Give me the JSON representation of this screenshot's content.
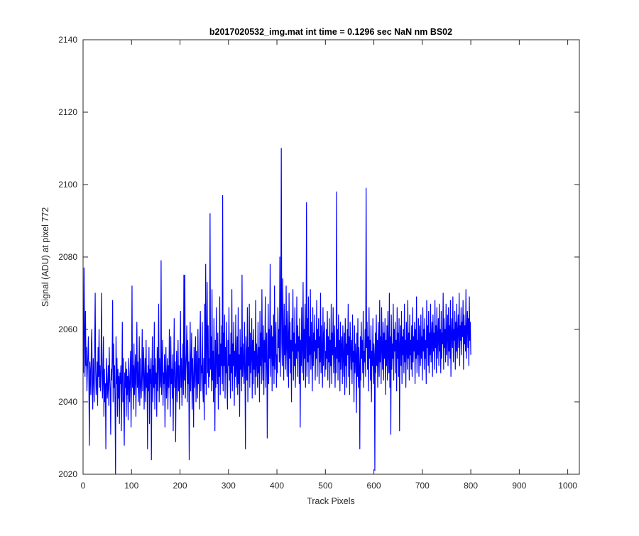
{
  "chart_data": {
    "type": "line",
    "title": "b2017020532_img.mat int time = 0.1296 sec  NaN nm BS02",
    "xlabel": "Track Pixels",
    "ylabel": "Signal (ADU) at pixel 772",
    "xlim": [
      0,
      1024
    ],
    "ylim": [
      2020,
      2140
    ],
    "xticks": [
      0,
      100,
      200,
      300,
      400,
      500,
      600,
      700,
      800,
      900,
      1000
    ],
    "yticks": [
      2020,
      2040,
      2060,
      2080,
      2100,
      2120,
      2140
    ],
    "grid": false,
    "line_color": "#0000ff",
    "series": [
      {
        "x_start": 1,
        "x_step": 1,
        "values": [
          2048,
          2077,
          2060,
          2047,
          2065,
          2050,
          2055,
          2043,
          2049,
          2053,
          2058,
          2045,
          2028,
          2051,
          2048,
          2042,
          2055,
          2060,
          2044,
          2038,
          2052,
          2047,
          2040,
          2056,
          2070,
          2049,
          2042,
          2045,
          2051,
          2039,
          2055,
          2047,
          2060,
          2044,
          2050,
          2043,
          2048,
          2070,
          2053,
          2041,
          2046,
          2058,
          2036,
          2049,
          2040,
          2045,
          2027,
          2052,
          2048,
          2041,
          2044,
          2050,
          2039,
          2055,
          2047,
          2043,
          2031,
          2049,
          2046,
          2052,
          2068,
          2040,
          2056,
          2044,
          2050,
          2039,
          2020,
          2058,
          2045,
          2052,
          2036,
          2049,
          2041,
          2047,
          2034,
          2048,
          2045,
          2050,
          2032,
          2046,
          2062,
          2040,
          2052,
          2038,
          2028,
          2048,
          2044,
          2051,
          2036,
          2049,
          2042,
          2047,
          2035,
          2052,
          2045,
          2040,
          2048,
          2054,
          2033,
          2046,
          2072,
          2044,
          2050,
          2038,
          2056,
          2042,
          2047,
          2053,
          2036,
          2049,
          2062,
          2044,
          2051,
          2040,
          2046,
          2058,
          2039,
          2052,
          2045,
          2041,
          2047,
          2060,
          2043,
          2050,
          2055,
          2038,
          2046,
          2052,
          2040,
          2057,
          2044,
          2048,
          2027,
          2050,
          2043,
          2055,
          2034,
          2049,
          2045,
          2052,
          2024,
          2047,
          2058,
          2040,
          2050,
          2044,
          2062,
          2038,
          2052,
          2045,
          2048,
          2036,
          2055,
          2043,
          2050,
          2067,
          2040,
          2052,
          2046,
          2044,
          2079,
          2042,
          2050,
          2057,
          2039,
          2048,
          2045,
          2053,
          2033,
          2049,
          2055,
          2041,
          2046,
          2052,
          2038,
          2050,
          2044,
          2060,
          2047,
          2036,
          2058,
          2045,
          2049,
          2041,
          2053,
          2032,
          2048,
          2063,
          2044,
          2051,
          2029,
          2046,
          2054,
          2040,
          2048,
          2057,
          2043,
          2050,
          2038,
          2047,
          2065,
          2044,
          2052,
          2039,
          2048,
          2056,
          2042,
          2075,
          2046,
          2075,
          2041,
          2049,
          2053,
          2061,
          2040,
          2057,
          2045,
          2051,
          2024,
          2048,
          2062,
          2043,
          2050,
          2059,
          2038,
          2052,
          2046,
          2033,
          2055,
          2044,
          2049,
          2058,
          2040,
          2054,
          2047,
          2041,
          2060,
          2045,
          2052,
          2038,
          2057,
          2065,
          2043,
          2050,
          2048,
          2062,
          2044,
          2040,
          2052,
          2035,
          2067,
          2045,
          2078,
          2042,
          2056,
          2073,
          2048,
          2061,
          2044,
          2052,
          2047,
          2092,
          2049,
          2058,
          2043,
          2071,
          2046,
          2054,
          2040,
          2063,
          2049,
          2032,
          2057,
          2044,
          2066,
          2051,
          2045,
          2059,
          2038,
          2053,
          2047,
          2069,
          2042,
          2056,
          2050,
          2061,
          2045,
          2097,
          2043,
          2059,
          2050,
          2064,
          2041,
          2055,
          2048,
          2062,
          2044,
          2038,
          2057,
          2050,
          2066,
          2046,
          2053,
          2041,
          2059,
          2048,
          2071,
          2043,
          2056,
          2050,
          2062,
          2039,
          2054,
          2047,
          2064,
          2044,
          2051,
          2058,
          2042,
          2066,
          2045,
          2053,
          2036,
          2060,
          2049,
          2055,
          2043,
          2075,
          2047,
          2056,
          2051,
          2045,
          2062,
          2049,
          2027,
          2058,
          2052,
          2046,
          2066,
          2040,
          2055,
          2050,
          2067,
          2044,
          2059,
          2048,
          2053,
          2063,
          2041,
          2057,
          2045,
          2060,
          2049,
          2054,
          2042,
          2068,
          2047,
          2056,
          2051,
          2044,
          2062,
          2048,
          2055,
          2040,
          2065,
          2050,
          2059,
          2045,
          2071,
          2053,
          2046,
          2061,
          2042,
          2057,
          2051,
          2069,
          2044,
          2055,
          2059,
          2030,
          2048,
          2067,
          2045,
          2060,
          2052,
          2078,
          2047,
          2055,
          2061,
          2043,
          2058,
          2050,
          2064,
          2045,
          2072,
          2049,
          2056,
          2062,
          2044,
          2053,
          2048,
          2066,
          2055,
          2060,
          2051,
          2080,
          2047,
          2063,
          2110,
          2056,
          2050,
          2074,
          2058,
          2046,
          2067,
          2053,
          2061,
          2049,
          2072,
          2055,
          2047,
          2065,
          2058,
          2044,
          2070,
          2052,
          2062,
          2048,
          2057,
          2040,
          2063,
          2054,
          2071,
          2046,
          2059,
          2050,
          2066,
          2044,
          2056,
          2052,
          2069,
          2047,
          2061,
          2054,
          2058,
          2045,
          2063,
          2033,
          2057,
          2050,
          2066,
          2048,
          2055,
          2073,
          2046,
          2060,
          2052,
          2067,
          2044,
          2056,
          2095,
          2047,
          2063,
          2051,
          2069,
          2045,
          2058,
          2053,
          2071,
          2049,
          2062,
          2055,
          2043,
          2066,
          2050,
          2059,
          2054,
          2064,
          2046,
          2057,
          2052,
          2068,
          2047,
          2060,
          2055,
          2063,
          2045,
          2058,
          2051,
          2070,
          2048,
          2061,
          2054,
          2044,
          2066,
          2050,
          2058,
          2062,
          2047,
          2054,
          2049,
          2060,
          2052,
          2065,
          2046,
          2058,
          2051,
          2063,
          2044,
          2057,
          2050,
          2067,
          2045,
          2059,
          2053,
          2066,
          2048,
          2056,
          2061,
          2044,
          2055,
          2048,
          2098,
          2052,
          2060,
          2046,
          2064,
          2051,
          2057,
          2043,
          2062,
          2049,
          2055,
          2058,
          2045,
          2061,
          2052,
          2047,
          2059,
          2042,
          2063,
          2050,
          2056,
          2044,
          2060,
          2053,
          2067,
          2047,
          2058,
          2042,
          2062,
          2055,
          2049,
          2057,
          2045,
          2064,
          2051,
          2054,
          2040,
          2061,
          2048,
          2056,
          2053,
          2037,
          2059,
          2047,
          2063,
          2044,
          2055,
          2050,
          2027,
          2058,
          2046,
          2062,
          2052,
          2057,
          2048,
          2065,
          2044,
          2054,
          2051,
          2060,
          2047,
          2099,
          2055,
          2062,
          2049,
          2058,
          2043,
          2066,
          2052,
          2057,
          2046,
          2061,
          2040,
          2054,
          2050,
          2063,
          2045,
          2056,
          2053,
          2021,
          2059,
          2048,
          2064,
          2050,
          2057,
          2044,
          2062,
          2053,
          2047,
          2068,
          2051,
          2058,
          2045,
          2066,
          2055,
          2049,
          2062,
          2046,
          2059,
          2052,
          2063,
          2042,
          2057,
          2050,
          2061,
          2046,
          2065,
          2053,
          2048,
          2070,
          2044,
          2058,
          2031,
          2064,
          2049,
          2056,
          2052,
          2067,
          2046,
          2060,
          2054,
          2062,
          2048,
          2057,
          2043,
          2066,
          2052,
          2059,
          2047,
          2063,
          2032,
          2056,
          2061,
          2050,
          2065,
          2045,
          2058,
          2053,
          2060,
          2048,
          2067,
          2051,
          2057,
          2044,
          2062,
          2055,
          2049,
          2068,
          2052,
          2059,
          2046,
          2064,
          2053,
          2057,
          2049,
          2061,
          2047,
          2066,
          2051,
          2058,
          2054,
          2062,
          2045,
          2060,
          2052,
          2069,
          2048,
          2057,
          2053,
          2063,
          2047,
          2061,
          2055,
          2050,
          2064,
          2052,
          2058,
          2046,
          2066,
          2054,
          2060,
          2049,
          2063,
          2052,
          2057,
          2045,
          2068,
          2055,
          2061,
          2050,
          2065,
          2048,
          2059,
          2053,
          2067,
          2051,
          2058,
          2062,
          2047,
          2064,
          2054,
          2059,
          2049,
          2068,
          2055,
          2061,
          2048,
          2066,
          2052,
          2058,
          2063,
          2050,
          2067,
          2054,
          2060,
          2048,
          2065,
          2052,
          2059,
          2056,
          2070,
          2049,
          2063,
          2055,
          2060,
          2051,
          2067,
          2053,
          2058,
          2064,
          2050,
          2066,
          2054,
          2061,
          2052,
          2068,
          2047,
          2059,
          2063,
          2055,
          2069,
          2051,
          2060,
          2057,
          2065,
          2049,
          2062,
          2054,
          2067,
          2052,
          2059,
          2064,
          2055,
          2070,
          2050,
          2061,
          2057,
          2066,
          2053,
          2062,
          2058,
          2068,
          2049,
          2064,
          2056,
          2061,
          2054,
          2071,
          2052,
          2060,
          2065,
          2055,
          2063,
          2050,
          2069,
          2057,
          2062,
          2053
        ]
      }
    ]
  }
}
